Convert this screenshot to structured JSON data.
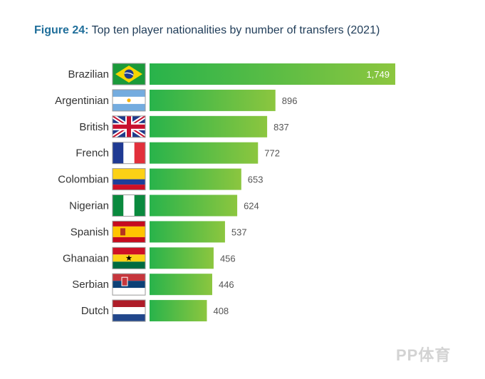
{
  "title": {
    "prefix": "Figure 24:",
    "text": "Top ten player nationalities by number of transfers (2021)"
  },
  "watermark": "PP体育",
  "colors": {
    "bar_start": "#28b34b",
    "bar_end": "#8cc63f",
    "value_label": "#555555",
    "inside_label": "#ffffff"
  },
  "chart_data": {
    "type": "bar",
    "orientation": "horizontal",
    "title": "Figure 24: Top ten player nationalities by number of transfers (2021)",
    "categories": [
      "Brazilian",
      "Argentinian",
      "British",
      "French",
      "Colombian",
      "Nigerian",
      "Spanish",
      "Ghanaian",
      "Serbian",
      "Dutch"
    ],
    "values": [
      1749,
      896,
      837,
      772,
      653,
      624,
      537,
      456,
      446,
      408
    ],
    "value_labels": [
      "1,749",
      "896",
      "837",
      "772",
      "653",
      "624",
      "537",
      "456",
      "446",
      "408"
    ],
    "flags": [
      "brazil-flag-icon",
      "argentina-flag-icon",
      "uk-flag-icon",
      "france-flag-icon",
      "colombia-flag-icon",
      "nigeria-flag-icon",
      "spain-flag-icon",
      "ghana-flag-icon",
      "serbia-flag-icon",
      "netherlands-flag-icon"
    ],
    "xlim": [
      0,
      1749
    ],
    "grid": false,
    "legend": "none"
  }
}
